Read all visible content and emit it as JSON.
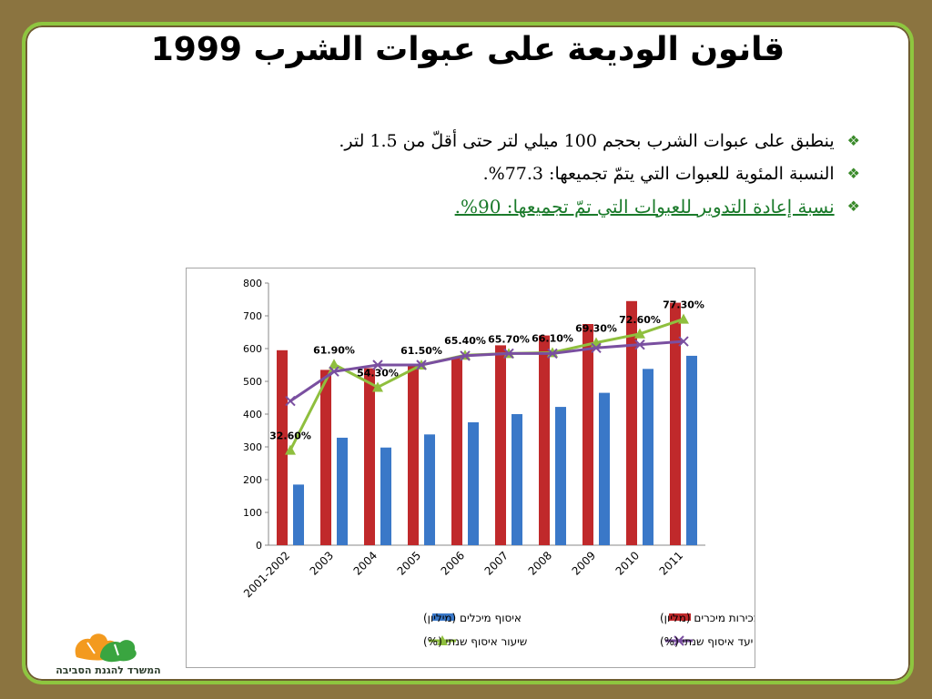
{
  "title": "قانون الوديعة على عبوات الشرب 1999",
  "bullets": [
    "ينطبق على عبوات الشرب بحجم 100 ميلي لتر حتى أقلّ من 1.5 لتر.",
    "النسبة المئوية للعبوات التي يتمّ تجميعها: 77.3%.",
    "نسبة إعادة التدوير للعبوات التي تمّ تجميعها: 90%."
  ],
  "logo_text": "המשרד להגנת הסביבה",
  "colors": {
    "sales": "#c0292b",
    "collected": "#3a78c8",
    "rate": "#8fbf3e",
    "target": "#7a4fa0",
    "bullet_mark": "#3a8a2a",
    "frame_outer": "#8b7440",
    "frame_border": "#8ec63f"
  },
  "chart_data": {
    "type": "bar",
    "categories": [
      "2001-2002",
      "2003",
      "2004",
      "2005",
      "2006",
      "2007",
      "2008",
      "2009",
      "2010",
      "2011"
    ],
    "ylim": [
      0,
      800
    ],
    "yticks": [
      0,
      100,
      200,
      300,
      400,
      500,
      600,
      700,
      800
    ],
    "grid": false,
    "legend_position": "bottom",
    "series": [
      {
        "name": "מכירות מיכרים (מליון)",
        "kind": "bar",
        "values": [
          595,
          535,
          540,
          550,
          575,
          610,
          640,
          675,
          745,
          740
        ]
      },
      {
        "name": "איסוף מיכלים (מיליון)",
        "kind": "bar",
        "values": [
          185,
          328,
          298,
          338,
          375,
          400,
          422,
          465,
          538,
          578
        ]
      },
      {
        "name": "שיעור איסוף שנתי (%)",
        "kind": "line",
        "marker": "triangle",
        "values": [
          290,
          552,
          482,
          550,
          580,
          585,
          588,
          618,
          645,
          690
        ],
        "labels": [
          "32.60%",
          "61.90%",
          "54.30%",
          "61.50%",
          "65.40%",
          "65.70%",
          "66.10%",
          "69.30%",
          "72.60%",
          "77.30%"
        ]
      },
      {
        "name": "יעד איסוף שנתי (%)",
        "kind": "line",
        "marker": "x",
        "values": [
          440,
          530,
          550,
          550,
          578,
          585,
          585,
          602,
          612,
          622
        ]
      }
    ]
  }
}
